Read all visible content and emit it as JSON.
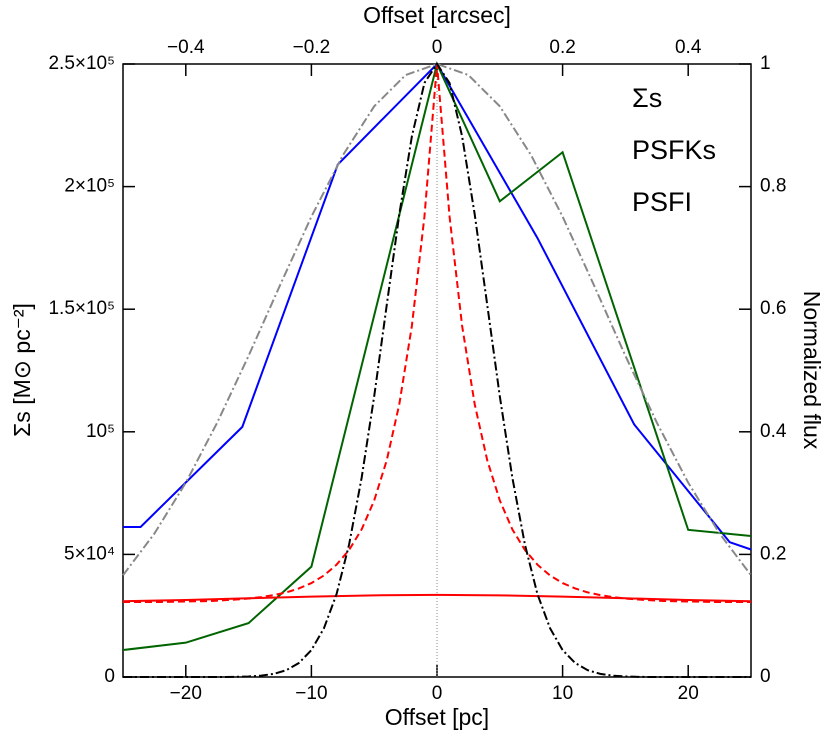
{
  "chart_data": {
    "type": "line",
    "xlabel": "Offset [pc]",
    "x2label": "Offset [arcsec]",
    "ylabel": "Σs [M⊙ pc⁻²]",
    "y2label": "Normalized flux",
    "xlim": [
      -25,
      25
    ],
    "xticks": [
      {
        "value": -20,
        "label": "−20"
      },
      {
        "value": -10,
        "label": "−10"
      },
      0,
      10,
      20
    ],
    "x2lim": [
      -0.5,
      0.5
    ],
    "x2ticks": [
      {
        "value": -0.4,
        "label": "−0.4"
      },
      {
        "value": -0.2,
        "label": "−0.2"
      },
      0,
      0.2,
      0.4
    ],
    "ylim": [
      0,
      250000
    ],
    "yticks": [
      0,
      {
        "value": 50000,
        "label": "5×10⁴"
      },
      {
        "value": 100000,
        "label": "10⁵"
      },
      {
        "value": 150000,
        "label": "1.5×10⁵"
      },
      {
        "value": 200000,
        "label": "2×10⁵"
      },
      {
        "value": 250000,
        "label": "2.5×10⁵"
      }
    ],
    "y2lim": [
      0,
      1
    ],
    "y2ticks": [
      0,
      0.2,
      0.4,
      0.6,
      0.8,
      1
    ],
    "legend": "upper right",
    "series": [
      {
        "color": "#0000ff",
        "style": "solid",
        "x": [
          -25,
          -23.6,
          -15.5,
          -7.9,
          0,
          8,
          15.7,
          23.3,
          25
        ],
        "values": [
          61200,
          61200,
          102000,
          209000,
          250000,
          179000,
          103000,
          55000,
          52000
        ]
      },
      {
        "color": "#006400",
        "style": "solid",
        "x": [
          -25,
          -20,
          -15,
          -10,
          0,
          5,
          10,
          20,
          25
        ],
        "values": [
          11000,
          14000,
          22000,
          45000,
          250000,
          194000,
          214000,
          60000,
          57500
        ]
      },
      {
        "name": "Σs",
        "color": "#ff0000",
        "style": "solid",
        "x": [
          -25,
          -20,
          -15,
          -10,
          -5,
          0,
          5,
          10,
          15,
          20,
          25
        ],
        "values": [
          30900,
          31400,
          32100,
          32800,
          33300,
          33500,
          33300,
          32800,
          32100,
          31400,
          30900
        ]
      },
      {
        "color": "#ff0000",
        "style": "dashed",
        "x": [
          -25,
          -24,
          -23,
          -22,
          -21,
          -20,
          -19,
          -18,
          -17,
          -16,
          -15,
          -14,
          -13,
          -12,
          -11,
          -10,
          -9,
          -8,
          -7,
          -6,
          -5,
          -4,
          -3,
          -2,
          -1,
          0,
          1,
          2,
          3,
          4,
          5,
          6,
          7,
          8,
          9,
          10,
          11,
          12,
          13,
          14,
          15,
          16,
          17,
          18,
          19,
          20,
          21,
          22,
          23,
          24,
          25
        ],
        "values": [
          30600,
          30600,
          30600,
          30600,
          30700,
          30800,
          30900,
          31000,
          31300,
          31600,
          32000,
          32600,
          33400,
          34500,
          36100,
          38300,
          41400,
          45800,
          51800,
          60200,
          72000,
          88400,
          111300,
          143200,
          187800,
          250000,
          187800,
          143200,
          111300,
          88400,
          72000,
          60200,
          51800,
          45800,
          41400,
          38300,
          36100,
          34500,
          33400,
          32600,
          32000,
          31600,
          31300,
          31000,
          30900,
          30800,
          30700,
          30600,
          30600,
          30600,
          30600
        ]
      },
      {
        "name": "PSFKs",
        "color": "#888888",
        "style": "dashdot",
        "axis": "y2",
        "x": [
          -25,
          -22.5,
          -20,
          -17.5,
          -15,
          -12.5,
          -10,
          -7.5,
          -5,
          -2.5,
          0,
          2.5,
          5,
          7.5,
          10,
          12.5,
          15,
          17.5,
          20,
          22.5,
          25
        ],
        "values": [
          0.166,
          0.234,
          0.317,
          0.415,
          0.524,
          0.639,
          0.751,
          0.851,
          0.931,
          0.982,
          1,
          0.982,
          0.931,
          0.851,
          0.751,
          0.639,
          0.524,
          0.415,
          0.317,
          0.234,
          0.166
        ]
      },
      {
        "name": "PSFI",
        "color": "#000000",
        "style": "dashdot",
        "axis": "y2",
        "x": [
          -25,
          -24,
          -23,
          -22,
          -21,
          -20,
          -19,
          -18,
          -17,
          -16,
          -15,
          -14,
          -13,
          -12,
          -11,
          -10,
          -9,
          -8,
          -7,
          -6,
          -5,
          -4,
          -3,
          -2,
          -1,
          0,
          1,
          2,
          3,
          4,
          5,
          6,
          7,
          8,
          9,
          10,
          11,
          12,
          13,
          14,
          15,
          16,
          17,
          18,
          19,
          20,
          21,
          22,
          23,
          24,
          25
        ],
        "values": [
          0,
          0,
          0,
          0,
          0,
          0,
          0,
          0,
          0,
          0.0003,
          0.0009,
          0.0022,
          0.0051,
          0.0111,
          0.0228,
          0.0439,
          0.0796,
          0.135,
          0.216,
          0.325,
          0.458,
          0.607,
          0.755,
          0.882,
          0.969,
          1,
          0.969,
          0.882,
          0.755,
          0.607,
          0.458,
          0.325,
          0.216,
          0.135,
          0.0796,
          0.0439,
          0.0228,
          0.0111,
          0.0051,
          0.0022,
          0.0009,
          0.0003,
          0,
          0,
          0,
          0,
          0,
          0,
          0,
          0,
          0
        ]
      }
    ]
  }
}
